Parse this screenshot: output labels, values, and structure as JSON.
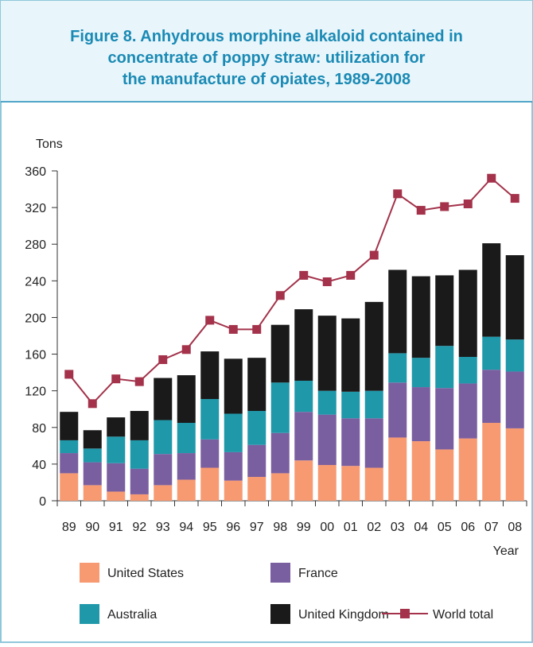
{
  "chart_data": {
    "type": "bar",
    "stacked": true,
    "title_lines": [
      "Figure 8.   Anhydrous morphine alkaloid contained in",
      "concentrate of poppy straw: utilization for",
      "the manufacture of opiates, 1989-2008"
    ],
    "ylabel": "Tons",
    "xlabel": "Year",
    "categories": [
      "89",
      "90",
      "91",
      "92",
      "93",
      "94",
      "95",
      "96",
      "97",
      "98",
      "99",
      "00",
      "01",
      "02",
      "03",
      "04",
      "05",
      "06",
      "07",
      "08"
    ],
    "ylim": [
      0,
      360
    ],
    "yticks": [
      0,
      40,
      80,
      120,
      160,
      200,
      240,
      280,
      320,
      360
    ],
    "series": [
      {
        "name": "United States",
        "color": "#f79a72",
        "values": [
          30,
          17,
          10,
          7,
          17,
          23,
          36,
          22,
          26,
          30,
          44,
          39,
          38,
          36,
          69,
          65,
          56,
          68,
          85,
          79
        ]
      },
      {
        "name": "France",
        "color": "#7a5fa0",
        "values": [
          22,
          25,
          31,
          28,
          34,
          29,
          31,
          31,
          35,
          44,
          53,
          55,
          52,
          54,
          60,
          59,
          67,
          60,
          58,
          62
        ]
      },
      {
        "name": "Australia",
        "color": "#1f98aa",
        "values": [
          14,
          15,
          29,
          31,
          37,
          33,
          44,
          42,
          37,
          55,
          34,
          26,
          29,
          30,
          32,
          32,
          46,
          29,
          36,
          35
        ]
      },
      {
        "name": "United Kingdom",
        "color": "#1a1a1a",
        "values": [
          31,
          20,
          21,
          32,
          46,
          52,
          52,
          60,
          58,
          63,
          78,
          82,
          80,
          97,
          91,
          89,
          77,
          95,
          102,
          92
        ]
      },
      {
        "name": "World total",
        "color": "#a3324a",
        "type": "line",
        "values": [
          138,
          106,
          133,
          130,
          154,
          165,
          197,
          187,
          187,
          224,
          246,
          239,
          246,
          268,
          335,
          317,
          321,
          324,
          352,
          330
        ]
      }
    ]
  }
}
